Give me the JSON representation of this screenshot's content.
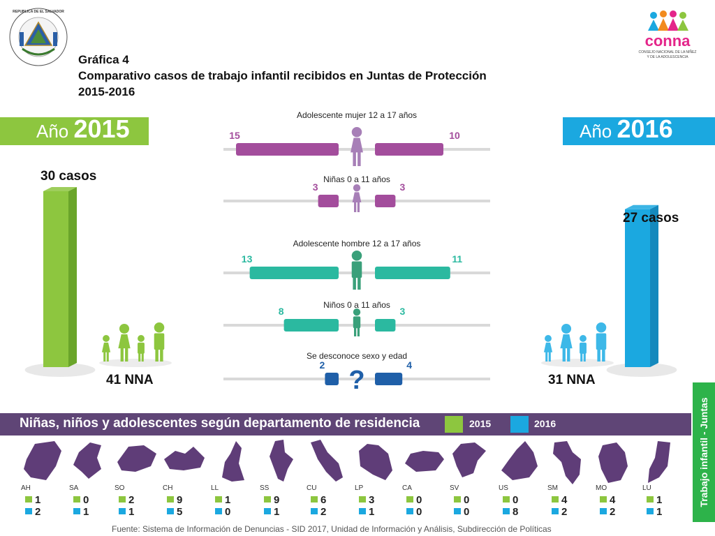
{
  "header": {
    "title_1": "Gráfica 4",
    "title_2": "Comparativo casos de trabajo infantil recibidos en Juntas de Protección",
    "title_3": "2015-2016",
    "seal_text": "REPUBLICA DE EL SALVADOR EN LA AMERICA CENTRAL",
    "logo_name": "conna",
    "logo_subtitle": "CONSEJO NACIONAL DE LA NIÑEZ Y DE LA ADOLESCENCIA"
  },
  "left": {
    "year_word": "Año",
    "year": "2015",
    "cases_label": "30 casos",
    "nna_label": "41 NNA",
    "color": "#8dc63f"
  },
  "right": {
    "year_word": "Año",
    "year": "2016",
    "cases_label": "27 casos",
    "nna_label": "31 NNA",
    "color": "#1ba8e0"
  },
  "chart_data": [
    {
      "type": "bar",
      "categories": [
        "Año 2015",
        "Año 2016"
      ],
      "values": [
        30,
        27
      ],
      "annotations": [
        "41 NNA",
        "31 NNA"
      ]
    },
    {
      "type": "bar",
      "orientation": "horizontal-butterfly",
      "categories": [
        "Adolescente mujer 12 a 17 años",
        "Niñas 0 a 11 años",
        "Adolescente hombre 12 a 17 años",
        "Niños 0 a 11 años",
        "Se desconoce sexo y edad"
      ],
      "series": [
        {
          "values": [
            15,
            3,
            13,
            8,
            2
          ]
        },
        {
          "values": [
            10,
            3,
            11,
            3,
            4
          ]
        }
      ],
      "colors": [
        "#a34d9c",
        "#a34d9c",
        "#2bb9a0",
        "#2bb9a0",
        "#1f5fa8"
      ],
      "unknown_symbol": "?"
    },
    {
      "type": "table",
      "title": "Niñas, niños y adolescentes según departamento de residencia",
      "legend": [
        "2015",
        "2016"
      ],
      "legend_colors": [
        "#8dc63f",
        "#1ba8e0"
      ],
      "columns": [
        "AH",
        "SA",
        "SO",
        "CH",
        "LL",
        "SS",
        "CU",
        "LP",
        "CA",
        "SV",
        "US",
        "SM",
        "MO",
        "LU"
      ],
      "rows": {
        "2015": [
          1,
          0,
          2,
          9,
          1,
          9,
          6,
          3,
          0,
          0,
          0,
          4,
          4,
          1
        ],
        "2016": [
          2,
          1,
          1,
          5,
          0,
          1,
          2,
          1,
          0,
          0,
          8,
          2,
          2,
          1
        ]
      }
    }
  ],
  "side_tab": "Trabajo infantil - Juntas",
  "footer": "Fuente: Sistema de Información de Denuncias - SID 2017, Unidad de Información y Análisis, Subdirección de Políticas",
  "colors": {
    "purple_dark": "#5f4576",
    "map_purple": "#5f3d78",
    "green_tab": "#2db34a",
    "track": "#d9d9d9"
  }
}
